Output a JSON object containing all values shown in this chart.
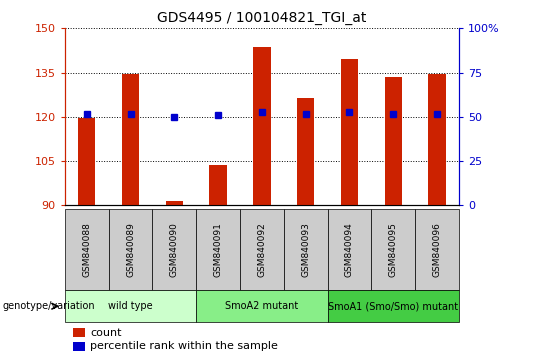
{
  "title": "GDS4495 / 100104821_TGI_at",
  "samples": [
    "GSM840088",
    "GSM840089",
    "GSM840090",
    "GSM840091",
    "GSM840092",
    "GSM840093",
    "GSM840094",
    "GSM840095",
    "GSM840096"
  ],
  "counts": [
    119.5,
    134.5,
    91.5,
    103.5,
    143.5,
    126.5,
    139.5,
    133.5,
    134.5
  ],
  "percentile_ranks_y": [
    121.0,
    121.0,
    120.0,
    120.5,
    121.5,
    121.0,
    121.5,
    121.0,
    121.0
  ],
  "bar_color": "#cc2200",
  "dot_color": "#0000cc",
  "ymin": 90,
  "ymax": 150,
  "y_ticks": [
    90,
    105,
    120,
    135,
    150
  ],
  "y_right_labels": [
    "0",
    "25",
    "50",
    "75",
    "100%"
  ],
  "groups": [
    {
      "label": "wild type",
      "start": 0,
      "end": 3,
      "color": "#ccffcc"
    },
    {
      "label": "SmoA2 mutant",
      "start": 3,
      "end": 6,
      "color": "#88ee88"
    },
    {
      "label": "SmoA1 (Smo/Smo) mutant",
      "start": 6,
      "end": 9,
      "color": "#44cc44"
    }
  ],
  "legend_count_label": "count",
  "legend_percentile_label": "percentile rank within the sample",
  "genotype_label": "genotype/variation",
  "tick_color_left": "#cc2200",
  "tick_color_right": "#0000cc",
  "sample_box_color": "#cccccc",
  "bar_width": 0.4
}
